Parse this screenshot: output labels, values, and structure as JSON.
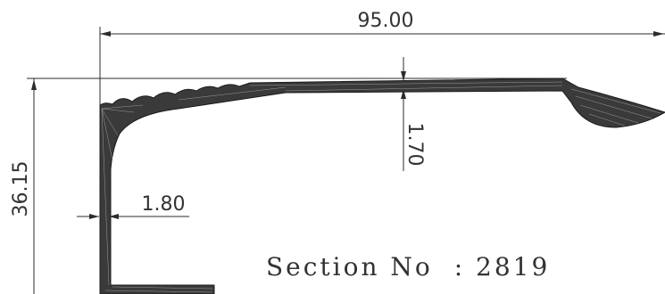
{
  "dimensions": {
    "overall_width": "95.00",
    "overall_height": "36.15",
    "top_thickness": "1.70",
    "wall_thickness": "1.80"
  },
  "caption": {
    "label": "Section No",
    "separator": ":",
    "number": "2819"
  },
  "colors": {
    "profile_fill": "#3a3a3a",
    "line": "#2b2b2b",
    "text": "#333333"
  }
}
